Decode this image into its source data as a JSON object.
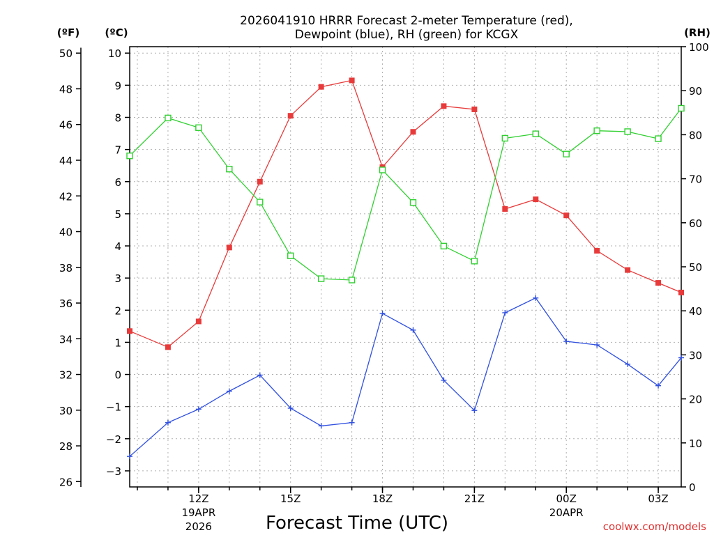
{
  "chart_data": {
    "type": "line",
    "title_line1": "2026041910 HRRR Forecast 2-meter Temperature (red),",
    "title_line2": "Dewpoint (blue), RH (green) for KCGX",
    "xlabel": "Forecast Time (UTC)",
    "credit": "coolwx.com/models",
    "unit_f": "(ºF)",
    "unit_c": "(ºC)",
    "unit_rh": "(RH)",
    "x_range": [
      9.75,
      27.75
    ],
    "celsius_range": [
      -3.5,
      10.2
    ],
    "rh_range": [
      0,
      100
    ],
    "x_ticks": [
      {
        "x": 12,
        "label": "12Z",
        "sub1": "19APR",
        "sub2": "2026"
      },
      {
        "x": 15,
        "label": "15Z",
        "sub1": "",
        "sub2": ""
      },
      {
        "x": 18,
        "label": "18Z",
        "sub1": "",
        "sub2": ""
      },
      {
        "x": 21,
        "label": "21Z",
        "sub1": "",
        "sub2": ""
      },
      {
        "x": 24,
        "label": "00Z",
        "sub1": "20APR",
        "sub2": ""
      },
      {
        "x": 27,
        "label": "03Z",
        "sub1": "",
        "sub2": ""
      }
    ],
    "fahrenheit_ticks": [
      "26",
      "28",
      "30",
      "32",
      "34",
      "36",
      "38",
      "40",
      "42",
      "44",
      "46",
      "48",
      "50"
    ],
    "celsius_ticks": [
      "-3",
      "-2",
      "-1",
      "0",
      "1",
      "2",
      "3",
      "4",
      "5",
      "6",
      "7",
      "8",
      "9",
      "10"
    ],
    "rh_ticks": [
      "0",
      "10",
      "20",
      "30",
      "40",
      "50",
      "60",
      "70",
      "80",
      "90",
      "100"
    ],
    "x": [
      9.75,
      11,
      12,
      13,
      14,
      15,
      16,
      17,
      18,
      19,
      20,
      21,
      22,
      23,
      24,
      25,
      26,
      27,
      27.75
    ],
    "series": [
      {
        "name": "Temperature",
        "unit": "C",
        "color": "#e83a3a",
        "marker": "filled-square",
        "values": [
          1.35,
          0.85,
          1.65,
          3.95,
          6.0,
          8.05,
          8.95,
          9.15,
          6.45,
          7.55,
          8.35,
          8.25,
          5.15,
          5.45,
          4.95,
          3.85,
          3.25,
          2.85,
          2.55
        ]
      },
      {
        "name": "Dewpoint",
        "unit": "C",
        "color": "#3050e0",
        "marker": "plus",
        "values": [
          -2.55,
          -1.5,
          -1.08,
          -0.52,
          -0.02,
          -1.05,
          -1.6,
          -1.5,
          1.9,
          1.38,
          -0.18,
          -1.12,
          1.92,
          2.38,
          1.03,
          0.92,
          0.32,
          -0.35,
          0.52
        ]
      },
      {
        "name": "RH",
        "unit": "%",
        "color": "#30d030",
        "marker": "open-square",
        "values": [
          75.2,
          83.8,
          81.6,
          72.2,
          64.7,
          52.5,
          47.3,
          47.0,
          72.0,
          64.6,
          54.7,
          51.3,
          79.2,
          80.2,
          75.6,
          80.9,
          80.7,
          79.1,
          86.0
        ]
      }
    ]
  }
}
